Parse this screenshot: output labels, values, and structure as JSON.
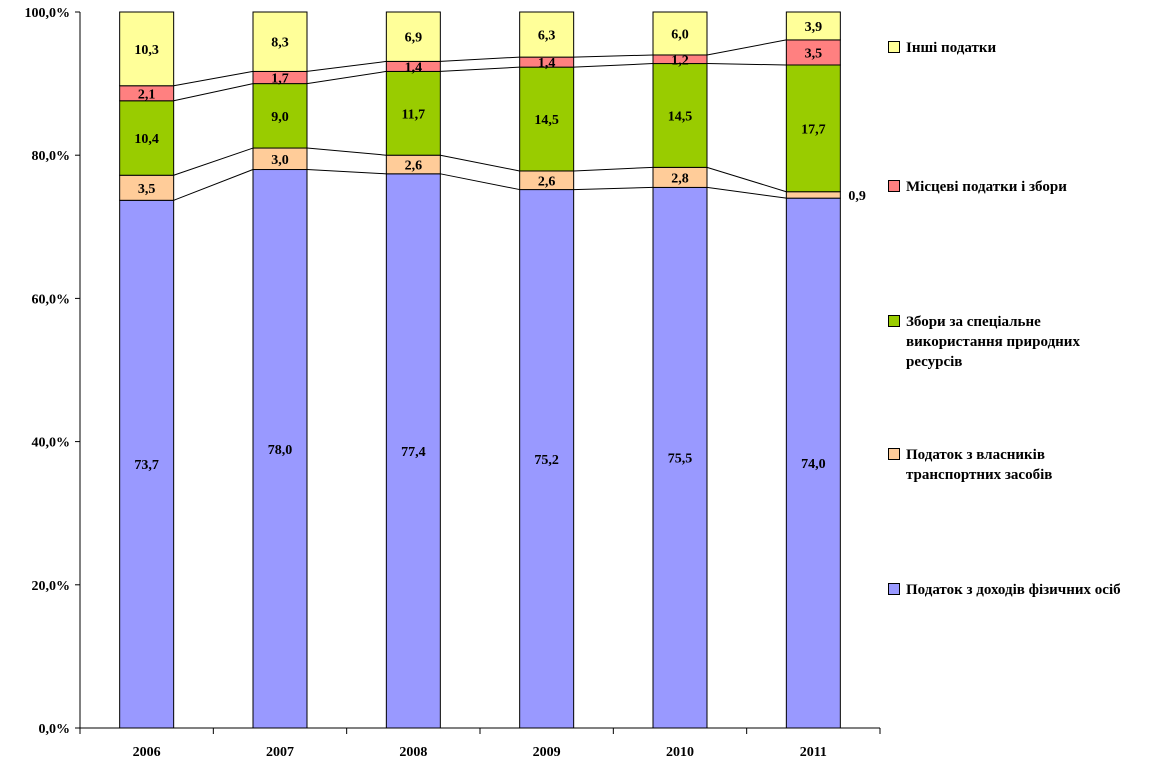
{
  "chart_data": {
    "type": "bar",
    "stacked": "percent",
    "categories": [
      "2006",
      "2007",
      "2008",
      "2009",
      "2010",
      "2011"
    ],
    "series": [
      {
        "name": "Податок з доходів фізичних осіб",
        "color": "#9999FF",
        "values": [
          73.7,
          78.0,
          77.4,
          75.2,
          75.5,
          74.0
        ],
        "labels": [
          "73,7",
          "78,0",
          "77,4",
          "75,2",
          "75,5",
          "74,0"
        ]
      },
      {
        "name": "Податок з власників транспортних засобів",
        "color": "#FFCC99",
        "values": [
          3.5,
          3.0,
          2.6,
          2.6,
          2.8,
          0.9
        ],
        "labels": [
          "3,5",
          "3,0",
          "2,6",
          "2,6",
          "2,8",
          "0,9"
        ]
      },
      {
        "name": "Збори за спеціальне використання природних ресурсів",
        "color": "#99CC00",
        "values": [
          10.4,
          9.0,
          11.7,
          14.5,
          14.5,
          17.7
        ],
        "labels": [
          "10,4",
          "9,0",
          "11,7",
          "14,5",
          "14,5",
          "17,7"
        ]
      },
      {
        "name": "Місцеві податки і збори",
        "color": "#FF8080",
        "values": [
          2.1,
          1.7,
          1.4,
          1.4,
          1.2,
          3.5
        ],
        "labels": [
          "2,1",
          "1,7",
          "1,4",
          "1,4",
          "1,2",
          "3,5"
        ]
      },
      {
        "name": "Інші податки",
        "color": "#FFFF99",
        "values": [
          10.3,
          8.3,
          6.9,
          6.3,
          6.0,
          3.9
        ],
        "labels": [
          "10,3",
          "8,3",
          "6,9",
          "6,3",
          "6,0",
          "3,9"
        ]
      }
    ],
    "y_ticks": [
      "0,0%",
      "20,0%",
      "40,0%",
      "60,0%",
      "80,0%",
      "100,0%"
    ],
    "ylim": [
      0,
      100
    ],
    "series_lines": true,
    "grid": false,
    "legend_position": "right"
  }
}
